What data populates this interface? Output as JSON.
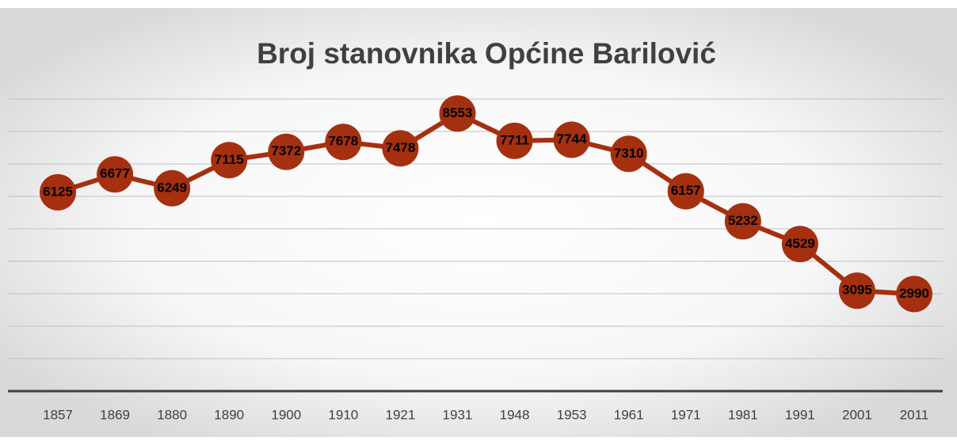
{
  "chart_data": {
    "type": "line",
    "title": "Broj stanovnika Općine Barilović",
    "categories": [
      "1857",
      "1869",
      "1880",
      "1890",
      "1900",
      "1910",
      "1921",
      "1931",
      "1948",
      "1953",
      "1961",
      "1971",
      "1981",
      "1991",
      "2001",
      "2011"
    ],
    "values": [
      6125,
      6677,
      6249,
      7115,
      7372,
      7678,
      7478,
      8553,
      7711,
      7744,
      7310,
      6157,
      5232,
      4529,
      3095,
      2990
    ],
    "color": "#a5300f",
    "ylim": [
      0,
      9000
    ],
    "yticks": [
      0,
      1000,
      2000,
      3000,
      4000,
      5000,
      6000,
      7000,
      8000,
      9000
    ],
    "grid": true
  }
}
